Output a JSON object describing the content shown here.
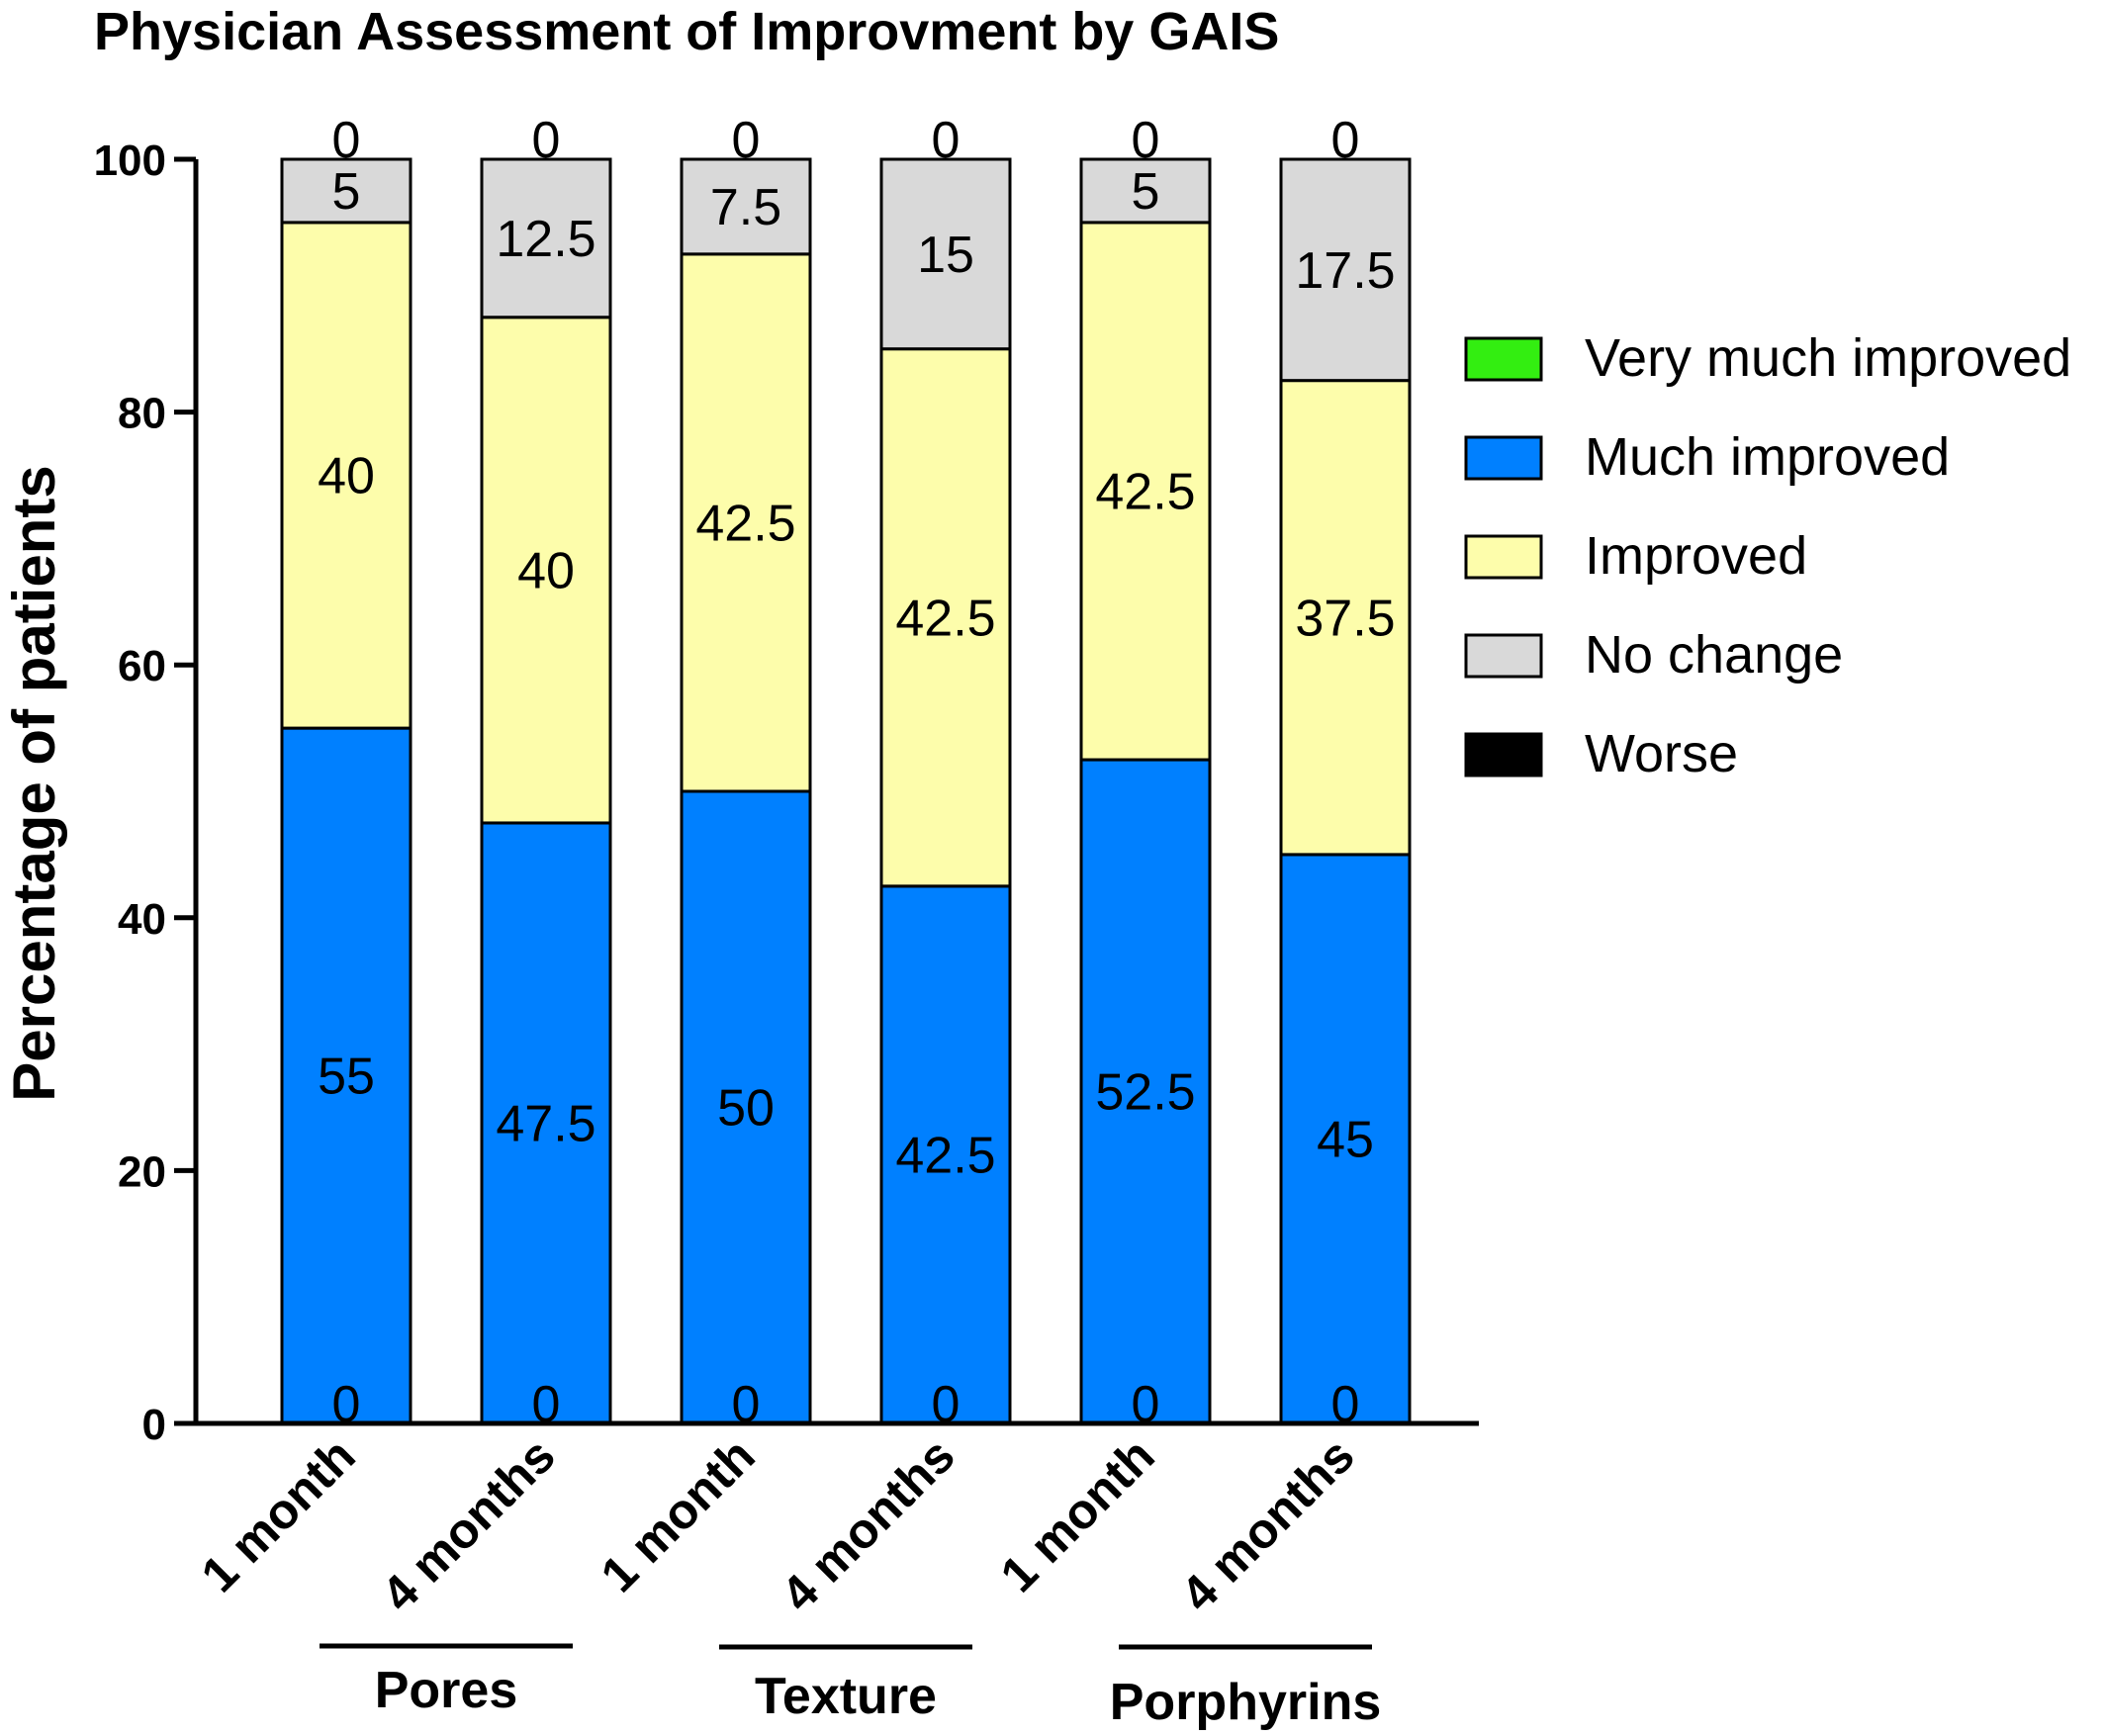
{
  "chart_data": {
    "type": "bar",
    "stacked": true,
    "title": "Physician  Assessment of Improvment by GAIS",
    "xlabel": "",
    "ylabel": "Percentage of patients",
    "ylim": [
      0,
      100
    ],
    "yticks": [
      0,
      20,
      40,
      60,
      80,
      100
    ],
    "categories": [
      "1 month",
      "4 months",
      "1 month",
      "4 months",
      "1 month",
      "4 months"
    ],
    "groups": [
      {
        "label": "Pores",
        "categories": [
          0,
          1
        ]
      },
      {
        "label": "Texture",
        "categories": [
          2,
          3
        ]
      },
      {
        "label": "Porphyrins",
        "categories": [
          4,
          5
        ]
      }
    ],
    "series": [
      {
        "name": "Worse",
        "color": "#000000",
        "values": [
          0,
          0,
          0,
          0,
          0,
          0
        ]
      },
      {
        "name": "Much improved",
        "color": "#0080ff",
        "values": [
          55,
          47.5,
          50,
          42.5,
          52.5,
          45
        ]
      },
      {
        "name": "Improved",
        "color": "#fdfdab",
        "values": [
          40,
          40,
          42.5,
          42.5,
          42.5,
          37.5
        ]
      },
      {
        "name": "No change",
        "color": "#d9d9d9",
        "values": [
          5,
          12.5,
          7.5,
          15,
          5,
          17.5
        ]
      },
      {
        "name": "Very much improved",
        "color": "#33ee11",
        "values": [
          0,
          0,
          0,
          0,
          0,
          0
        ]
      }
    ],
    "legend": {
      "position": "right",
      "order": [
        "Very much improved",
        "Much improved",
        "Improved",
        "No change",
        "Worse"
      ]
    },
    "grid": false
  }
}
